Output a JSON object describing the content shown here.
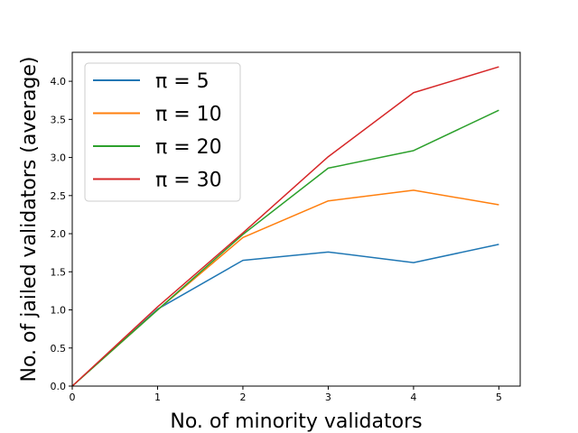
{
  "chart_data": {
    "type": "line",
    "title": "",
    "xlabel": "No. of minority validators",
    "ylabel": "No. of jailed validators (average)",
    "x": [
      0,
      1,
      2,
      3,
      4,
      5
    ],
    "xlim": [
      0,
      5.25
    ],
    "ylim": [
      0,
      4.38
    ],
    "xticks": [
      "0",
      "1",
      "2",
      "3",
      "4",
      "5"
    ],
    "yticks": [
      "0.0",
      "0.5",
      "1.0",
      "1.5",
      "2.0",
      "2.5",
      "3.0",
      "3.5",
      "4.0"
    ],
    "grid": false,
    "legend_position": "top-left",
    "series": [
      {
        "name": "π = 5",
        "color": "#1f77b4",
        "values": [
          0,
          1.01,
          1.65,
          1.76,
          1.62,
          1.86
        ]
      },
      {
        "name": "π = 10",
        "color": "#ff7f0e",
        "values": [
          0,
          1.0,
          1.95,
          2.43,
          2.57,
          2.38
        ]
      },
      {
        "name": "π = 20",
        "color": "#2ca02c",
        "values": [
          0,
          1.0,
          1.99,
          2.86,
          3.09,
          3.62
        ]
      },
      {
        "name": "π = 30",
        "color": "#d62728",
        "values": [
          0,
          1.04,
          2.01,
          3.01,
          3.85,
          4.19
        ]
      }
    ]
  }
}
